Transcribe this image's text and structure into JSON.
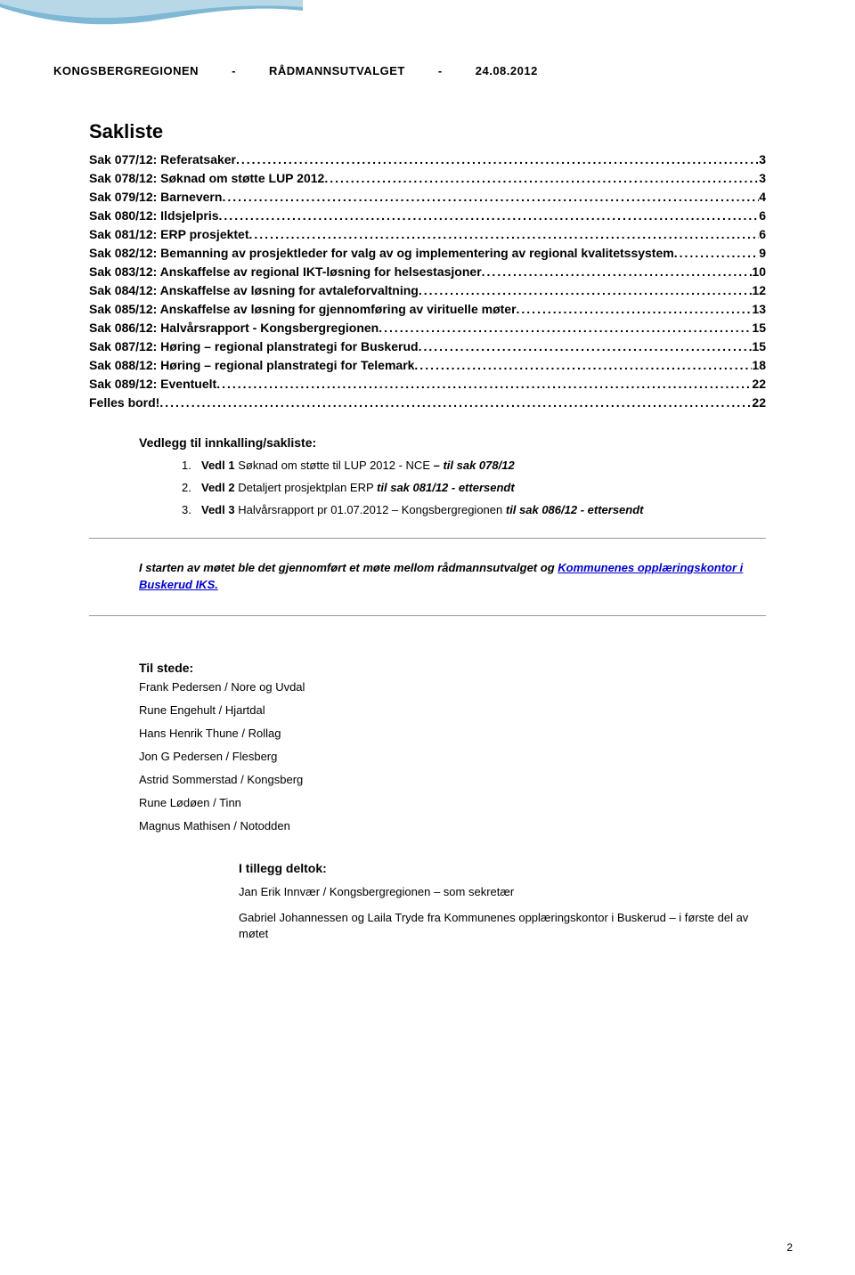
{
  "waveColors": {
    "outer": "#7fb8d4",
    "inner": "#b8d8e8"
  },
  "header": {
    "region": "KONGSBERGREGIONEN",
    "sep": "-",
    "committee": "RÅDMANNSUTVALGET",
    "date": "24.08.2012"
  },
  "saklisteTitle": "Sakliste",
  "toc": [
    {
      "label": "Sak 077/12: Referatsaker",
      "page": "3"
    },
    {
      "label": "Sak 078/12: Søknad om støtte LUP 2012",
      "page": "3"
    },
    {
      "label": "Sak 079/12: Barnevern",
      "page": "4"
    },
    {
      "label": "Sak 080/12: Ildsjelpris",
      "page": "6"
    },
    {
      "label": "Sak 081/12: ERP prosjektet",
      "page": "6"
    },
    {
      "label": "Sak 082/12: Bemanning av prosjektleder for valg av og implementering av regional kvalitetssystem",
      "page": "9"
    },
    {
      "label": "Sak 083/12: Anskaffelse av regional IKT-løsning for helsestasjoner",
      "page": "10"
    },
    {
      "label": "Sak 084/12: Anskaffelse av løsning for avtaleforvaltning",
      "page": "12"
    },
    {
      "label": "Sak 085/12: Anskaffelse av løsning for gjennomføring av virituelle møter",
      "page": "13"
    },
    {
      "label": "Sak 086/12: Halvårsrapport - Kongsbergregionen",
      "page": "15"
    },
    {
      "label": "Sak 087/12: Høring – regional planstrategi for Buskerud",
      "page": "15"
    },
    {
      "label": "Sak 088/12: Høring – regional planstrategi for Telemark",
      "page": "18"
    },
    {
      "label": "Sak 089/12: Eventuelt",
      "page": "22"
    },
    {
      "label": "Felles bord!",
      "page": "22"
    }
  ],
  "vedleggTitle": "Vedlegg til innkalling/sakliste:",
  "vedlegg": [
    {
      "n": "1.",
      "pre": "Vedl 1 ",
      "mid": "Søknad om støtte til LUP 2012 - NCE ",
      "em": "– til sak 078/12"
    },
    {
      "n": "2.",
      "pre": "Vedl 2 ",
      "mid": "Detaljert prosjektplan ERP ",
      "em": "til sak 081/12 - ettersendt"
    },
    {
      "n": "3.",
      "pre": "Vedl 3 ",
      "mid": "Halvårsrapport pr 01.07.2012 – Kongsbergregionen ",
      "em": "til sak 086/12 - ettersendt"
    }
  ],
  "note": {
    "prefix": "I starten av møtet ble det gjennomført et møte mellom rådmannsutvalget og ",
    "link": "Kommunenes opplæringskontor i Buskerud IKS.",
    "linkHref": "#"
  },
  "tilstedeTitle": "Til stede:",
  "tilstede": [
    "Frank Pedersen / Nore og Uvdal",
    "Rune Engehult / Hjartdal",
    "Hans Henrik Thune / Rollag",
    "Jon G Pedersen / Flesberg",
    "Astrid Sommerstad / Kongsberg",
    "Rune Lødøen / Tinn",
    "Magnus Mathisen / Notodden"
  ],
  "tilleggTitle": "I tillegg deltok:",
  "tillegg": [
    "Jan Erik Innvær / Kongsbergregionen – som sekretær",
    "Gabriel Johannessen og Laila Tryde fra Kommunenes opplæringskontor i Buskerud – i første del av møtet"
  ],
  "pageNumber": "2"
}
